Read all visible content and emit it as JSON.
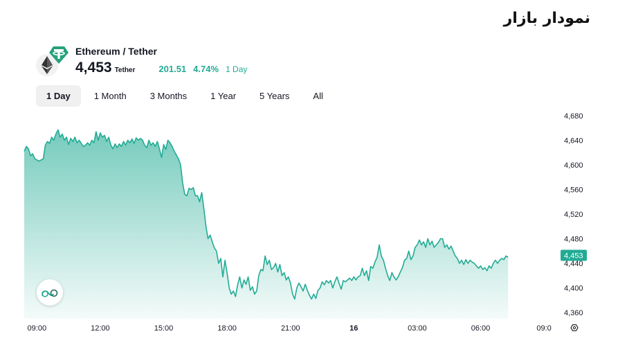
{
  "page": {
    "title": "نمودار بازار"
  },
  "header": {
    "pair": "Ethereum / Tether",
    "price": "4,453",
    "unit": "Tether",
    "change_abs": "201.51",
    "change_pct": "4.74%",
    "change_period": "1 Day",
    "icons": {
      "base": "ethereum-icon",
      "quote": "tether-icon"
    },
    "colors": {
      "up": "#22ab94",
      "tether": "#26a17b"
    }
  },
  "tabs": [
    {
      "label": "1 Day",
      "active": true
    },
    {
      "label": "1 Month",
      "active": false
    },
    {
      "label": "3 Months",
      "active": false
    },
    {
      "label": "1 Year",
      "active": false
    },
    {
      "label": "5 Years",
      "active": false
    },
    {
      "label": "All",
      "active": false
    }
  ],
  "chart_data": {
    "type": "area",
    "x_ticks": [
      "09:00",
      "12:00",
      "15:00",
      "18:00",
      "21:00",
      "16",
      "03:00",
      "06:00",
      "09:0"
    ],
    "y_ticks": [
      4680,
      4640,
      4600,
      4560,
      4520,
      4480,
      4440,
      4400,
      4360
    ],
    "y_tick_labels": [
      "4,680",
      "4,640",
      "4,600",
      "4,560",
      "4,520",
      "4,480",
      "4,440",
      "4,400",
      "4,360"
    ],
    "ylim": [
      4350,
      4690
    ],
    "x_range_hours": [
      -0.6,
      23.8
    ],
    "current_value_label": "4,453",
    "current_value": 4453,
    "line_color": "#22ab94",
    "points": [
      [
        -0.6,
        4622
      ],
      [
        -0.5,
        4630
      ],
      [
        -0.4,
        4626
      ],
      [
        -0.3,
        4615
      ],
      [
        -0.2,
        4618
      ],
      [
        -0.1,
        4610
      ],
      [
        0.0,
        4608
      ],
      [
        0.1,
        4606
      ],
      [
        0.2,
        4608
      ],
      [
        0.3,
        4610
      ],
      [
        0.4,
        4632
      ],
      [
        0.5,
        4638
      ],
      [
        0.6,
        4635
      ],
      [
        0.7,
        4645
      ],
      [
        0.8,
        4640
      ],
      [
        0.9,
        4650
      ],
      [
        1.0,
        4657
      ],
      [
        1.1,
        4645
      ],
      [
        1.2,
        4650
      ],
      [
        1.3,
        4640
      ],
      [
        1.4,
        4645
      ],
      [
        1.5,
        4633
      ],
      [
        1.6,
        4643
      ],
      [
        1.7,
        4638
      ],
      [
        1.8,
        4645
      ],
      [
        1.9,
        4636
      ],
      [
        2.0,
        4640
      ],
      [
        2.1,
        4635
      ],
      [
        2.2,
        4630
      ],
      [
        2.3,
        4632
      ],
      [
        2.4,
        4636
      ],
      [
        2.5,
        4632
      ],
      [
        2.6,
        4640
      ],
      [
        2.7,
        4636
      ],
      [
        2.8,
        4654
      ],
      [
        2.9,
        4640
      ],
      [
        3.0,
        4652
      ],
      [
        3.1,
        4645
      ],
      [
        3.2,
        4648
      ],
      [
        3.3,
        4638
      ],
      [
        3.4,
        4645
      ],
      [
        3.5,
        4632
      ],
      [
        3.6,
        4626
      ],
      [
        3.7,
        4634
      ],
      [
        3.8,
        4628
      ],
      [
        3.9,
        4634
      ],
      [
        4.0,
        4630
      ],
      [
        4.1,
        4638
      ],
      [
        4.2,
        4632
      ],
      [
        4.3,
        4640
      ],
      [
        4.4,
        4636
      ],
      [
        4.5,
        4642
      ],
      [
        4.6,
        4635
      ],
      [
        4.7,
        4644
      ],
      [
        4.8,
        4640
      ],
      [
        4.9,
        4643
      ],
      [
        5.0,
        4640
      ],
      [
        5.1,
        4632
      ],
      [
        5.2,
        4628
      ],
      [
        5.3,
        4640
      ],
      [
        5.4,
        4632
      ],
      [
        5.5,
        4636
      ],
      [
        5.6,
        4630
      ],
      [
        5.7,
        4638
      ],
      [
        5.8,
        4626
      ],
      [
        5.9,
        4612
      ],
      [
        6.0,
        4633
      ],
      [
        6.1,
        4625
      ],
      [
        6.2,
        4640
      ],
      [
        6.3,
        4636
      ],
      [
        6.4,
        4630
      ],
      [
        6.5,
        4622
      ],
      [
        6.6,
        4616
      ],
      [
        6.7,
        4610
      ],
      [
        6.8,
        4600
      ],
      [
        6.9,
        4570
      ],
      [
        7.0,
        4552
      ],
      [
        7.1,
        4550
      ],
      [
        7.2,
        4562
      ],
      [
        7.3,
        4560
      ],
      [
        7.4,
        4563
      ],
      [
        7.5,
        4550
      ],
      [
        7.6,
        4550
      ],
      [
        7.7,
        4540
      ],
      [
        7.8,
        4555
      ],
      [
        7.9,
        4530
      ],
      [
        8.0,
        4500
      ],
      [
        8.1,
        4480
      ],
      [
        8.2,
        4486
      ],
      [
        8.3,
        4475
      ],
      [
        8.4,
        4465
      ],
      [
        8.5,
        4460
      ],
      [
        8.6,
        4440
      ],
      [
        8.7,
        4448
      ],
      [
        8.8,
        4418
      ],
      [
        8.9,
        4445
      ],
      [
        9.0,
        4425
      ],
      [
        9.1,
        4400
      ],
      [
        9.2,
        4390
      ],
      [
        9.3,
        4395
      ],
      [
        9.4,
        4386
      ],
      [
        9.5,
        4405
      ],
      [
        9.6,
        4418
      ],
      [
        9.7,
        4400
      ],
      [
        9.8,
        4413
      ],
      [
        9.9,
        4406
      ],
      [
        10.0,
        4418
      ],
      [
        10.1,
        4396
      ],
      [
        10.2,
        4402
      ],
      [
        10.3,
        4390
      ],
      [
        10.4,
        4395
      ],
      [
        10.5,
        4420
      ],
      [
        10.6,
        4430
      ],
      [
        10.7,
        4428
      ],
      [
        10.8,
        4452
      ],
      [
        10.9,
        4438
      ],
      [
        11.0,
        4445
      ],
      [
        11.1,
        4430
      ],
      [
        11.2,
        4433
      ],
      [
        11.3,
        4440
      ],
      [
        11.4,
        4426
      ],
      [
        11.5,
        4438
      ],
      [
        11.6,
        4420
      ],
      [
        11.7,
        4425
      ],
      [
        11.8,
        4413
      ],
      [
        11.9,
        4418
      ],
      [
        12.0,
        4408
      ],
      [
        12.1,
        4390
      ],
      [
        12.2,
        4382
      ],
      [
        12.3,
        4400
      ],
      [
        12.4,
        4408
      ],
      [
        12.5,
        4402
      ],
      [
        12.6,
        4395
      ],
      [
        12.7,
        4406
      ],
      [
        12.8,
        4396
      ],
      [
        12.9,
        4388
      ],
      [
        13.0,
        4382
      ],
      [
        13.1,
        4390
      ],
      [
        13.2,
        4383
      ],
      [
        13.3,
        4396
      ],
      [
        13.4,
        4400
      ],
      [
        13.5,
        4410
      ],
      [
        13.6,
        4405
      ],
      [
        13.7,
        4412
      ],
      [
        13.8,
        4408
      ],
      [
        13.9,
        4412
      ],
      [
        14.0,
        4400
      ],
      [
        14.1,
        4410
      ],
      [
        14.2,
        4418
      ],
      [
        14.3,
        4408
      ],
      [
        14.4,
        4398
      ],
      [
        14.5,
        4412
      ],
      [
        14.6,
        4410
      ],
      [
        14.7,
        4413
      ],
      [
        14.8,
        4416
      ],
      [
        14.9,
        4412
      ],
      [
        15.0,
        4418
      ],
      [
        15.1,
        4413
      ],
      [
        15.2,
        4418
      ],
      [
        15.3,
        4420
      ],
      [
        15.4,
        4432
      ],
      [
        15.5,
        4420
      ],
      [
        15.6,
        4428
      ],
      [
        15.7,
        4412
      ],
      [
        15.8,
        4435
      ],
      [
        15.9,
        4432
      ],
      [
        16.0,
        4442
      ],
      [
        16.1,
        4450
      ],
      [
        16.2,
        4470
      ],
      [
        16.3,
        4452
      ],
      [
        16.4,
        4445
      ],
      [
        16.5,
        4432
      ],
      [
        16.6,
        4420
      ],
      [
        16.7,
        4412
      ],
      [
        16.8,
        4425
      ],
      [
        16.9,
        4418
      ],
      [
        17.0,
        4413
      ],
      [
        17.1,
        4418
      ],
      [
        17.2,
        4426
      ],
      [
        17.3,
        4433
      ],
      [
        17.4,
        4445
      ],
      [
        17.5,
        4448
      ],
      [
        17.6,
        4460
      ],
      [
        17.7,
        4446
      ],
      [
        17.8,
        4452
      ],
      [
        17.9,
        4466
      ],
      [
        18.0,
        4470
      ],
      [
        18.1,
        4478
      ],
      [
        18.2,
        4470
      ],
      [
        18.3,
        4475
      ],
      [
        18.4,
        4466
      ],
      [
        18.5,
        4480
      ],
      [
        18.6,
        4470
      ],
      [
        18.7,
        4476
      ],
      [
        18.8,
        4466
      ],
      [
        18.9,
        4470
      ],
      [
        19.0,
        4474
      ],
      [
        19.1,
        4480
      ],
      [
        19.2,
        4480
      ],
      [
        19.3,
        4466
      ],
      [
        19.4,
        4470
      ],
      [
        19.5,
        4463
      ],
      [
        19.6,
        4468
      ],
      [
        19.7,
        4460
      ],
      [
        19.8,
        4452
      ],
      [
        19.9,
        4448
      ],
      [
        20.0,
        4440
      ],
      [
        20.1,
        4445
      ],
      [
        20.2,
        4438
      ],
      [
        20.3,
        4446
      ],
      [
        20.4,
        4440
      ],
      [
        20.5,
        4445
      ],
      [
        20.6,
        4442
      ],
      [
        20.7,
        4440
      ],
      [
        20.8,
        4436
      ],
      [
        20.9,
        4432
      ],
      [
        21.0,
        4436
      ],
      [
        21.1,
        4430
      ],
      [
        21.2,
        4433
      ],
      [
        21.3,
        4428
      ],
      [
        21.4,
        4436
      ],
      [
        21.5,
        4432
      ],
      [
        21.6,
        4440
      ],
      [
        21.7,
        4445
      ],
      [
        21.8,
        4440
      ],
      [
        21.9,
        4445
      ],
      [
        22.0,
        4448
      ],
      [
        22.1,
        4446
      ],
      [
        22.2,
        4452
      ],
      [
        22.3,
        4450
      ]
    ]
  }
}
